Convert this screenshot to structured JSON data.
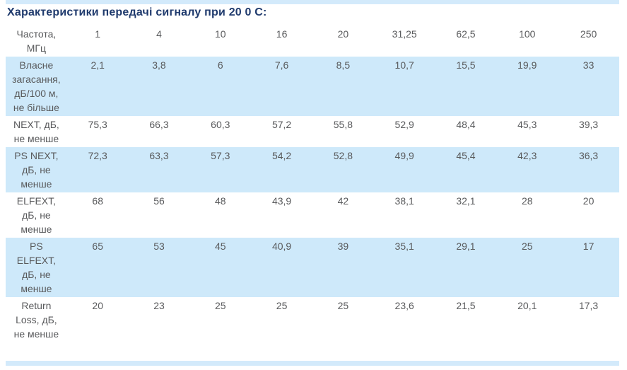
{
  "page": {
    "title": "Характеристики передачі сигналу при 20 0 С:"
  },
  "table": {
    "header": {
      "label": "Частота,\nМГц",
      "frequencies": [
        "1",
        "4",
        "10",
        "16",
        "20",
        "31,25",
        "62,5",
        "100",
        "250"
      ]
    },
    "rows": [
      {
        "label": "Власне\nзагасання,\nдБ/100 м,\nне більше",
        "values": [
          "2,1",
          "3,8",
          "6",
          "7,6",
          "8,5",
          "10,7",
          "15,5",
          "19,9",
          "33"
        ],
        "highlighted": true
      },
      {
        "label": "NEXT, дБ,\nне менше",
        "values": [
          "75,3",
          "66,3",
          "60,3",
          "57,2",
          "55,8",
          "52,9",
          "48,4",
          "45,3",
          "39,3"
        ],
        "highlighted": false
      },
      {
        "label": "PS NEXT,\nдБ, не\nменше",
        "values": [
          "72,3",
          "63,3",
          "57,3",
          "54,2",
          "52,8",
          "49,9",
          "45,4",
          "42,3",
          "36,3"
        ],
        "highlighted": true
      },
      {
        "label": "ELFEXT,\nдБ, не\nменше",
        "values": [
          "68",
          "56",
          "48",
          "43,9",
          "42",
          "38,1",
          "32,1",
          "28",
          "20"
        ],
        "highlighted": false
      },
      {
        "label": "PS\nELFEXT,\nдБ, не\nменше",
        "values": [
          "65",
          "53",
          "45",
          "40,9",
          "39",
          "35,1",
          "29,1",
          "25",
          "17"
        ],
        "highlighted": true
      },
      {
        "label": "Return\nLoss, дБ,\nне менше",
        "values": [
          "20",
          "23",
          "25",
          "25",
          "25",
          "23,6",
          "21,5",
          "20,1",
          "17,3"
        ],
        "highlighted": false
      }
    ]
  },
  "colors": {
    "title": "#1f3a6d",
    "text": "#595a5c",
    "row_highlight": "#cee9fa",
    "edge_bar": "#d3eafb"
  }
}
